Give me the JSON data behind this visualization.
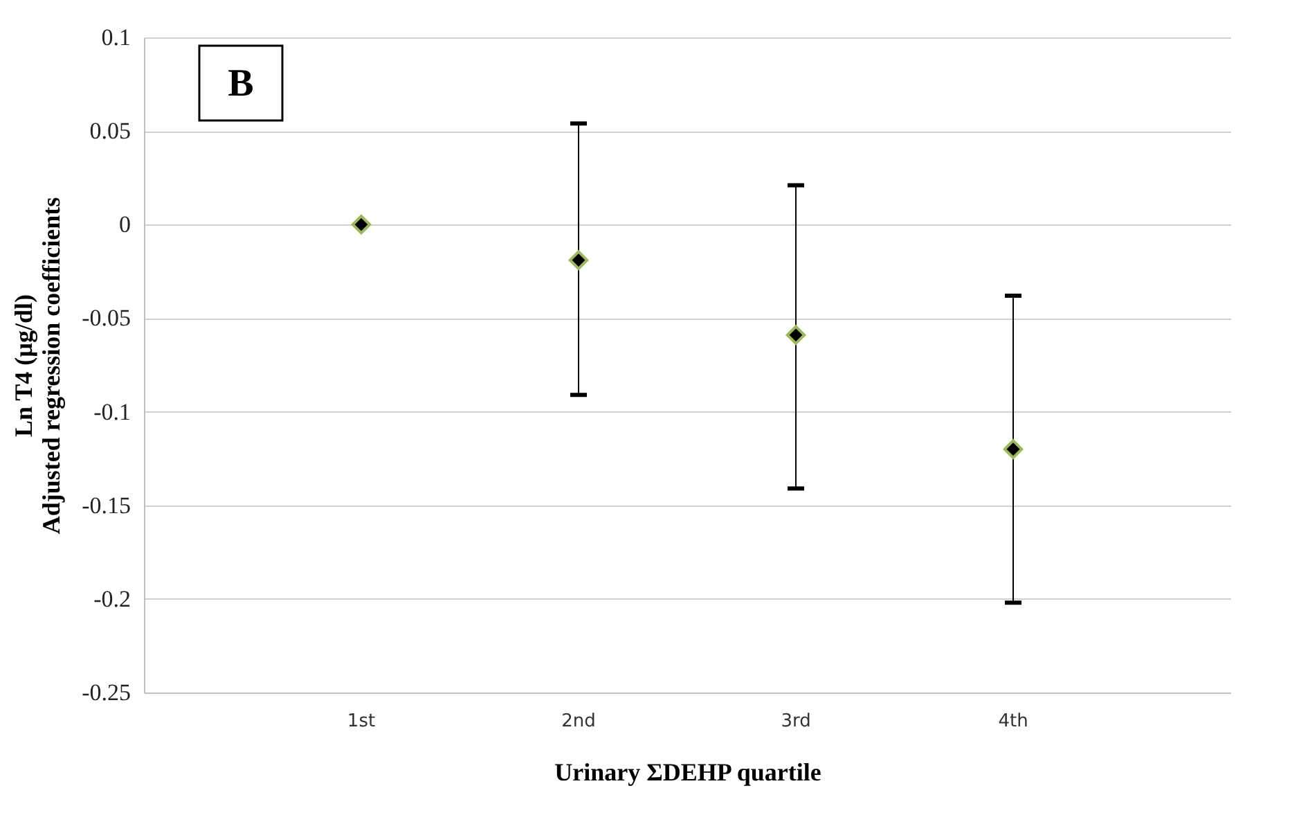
{
  "chart_data": {
    "type": "scatter",
    "xlabel": "Urinary ΣDEHP quartile",
    "ylabel": "Ln T4 (µg/dl)\nAdjusted  regression coefficients",
    "annotations": [
      "B"
    ],
    "categories": [
      "1st",
      "2nd",
      "3rd",
      "4th"
    ],
    "series": [
      {
        "color": "#000000",
        "values": [
          0,
          -0.019,
          -0.059,
          -0.12
        ],
        "errors": [
          null,
          [
            -0.091,
            0.054
          ],
          [
            -0.141,
            0.021
          ],
          [
            -0.202,
            -0.038
          ]
        ]
      }
    ],
    "marker": "diamond",
    "ylim": [
      -0.25,
      0.1
    ],
    "yticks": [
      -0.25,
      -0.2,
      -0.15,
      -0.1,
      -0.05,
      0,
      0.05,
      0.1
    ],
    "grid": "y"
  }
}
